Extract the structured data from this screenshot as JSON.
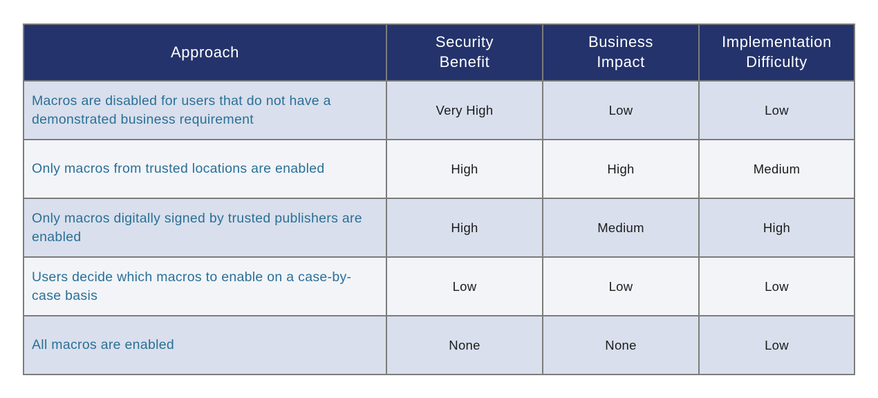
{
  "chart_data": {
    "type": "table",
    "title": "",
    "columns": [
      "Approach",
      "Security\nBenefit",
      "Business\nImpact",
      "Implementation\nDifficulty"
    ],
    "rows": [
      [
        "Macros are disabled for users that do not have a demonstrated business requirement",
        "Very High",
        "Low",
        "Low"
      ],
      [
        "Only macros from trusted locations are enabled",
        "High",
        "High",
        "Medium"
      ],
      [
        "Only macros digitally signed by trusted publishers are enabled",
        "High",
        "Medium",
        "High"
      ],
      [
        "Users decide which macros to enable on a case-by-case basis",
        "Low",
        "Low",
        "Low"
      ],
      [
        "All macros are enabled",
        "None",
        "None",
        "Low"
      ]
    ]
  },
  "colors": {
    "header_bg": "#24336B",
    "header_text": "#FFFFFF",
    "row_odd_bg": "#D9DFEC",
    "row_even_bg": "#F2F4F8",
    "approach_text": "#2A7097",
    "value_text": "#1C1C1C",
    "border": "#7C7C7C",
    "page_bg": "#FFFFFF"
  }
}
